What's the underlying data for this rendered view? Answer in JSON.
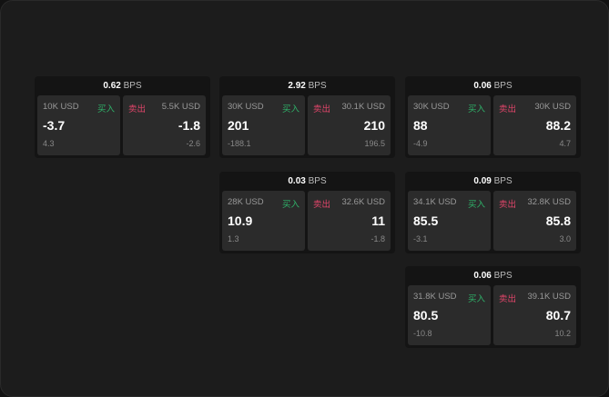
{
  "labels": {
    "buy": "买入",
    "sell": "卖出",
    "unit": "BPS"
  },
  "colors": {
    "buy": "#2fb36a",
    "sell": "#e0456a"
  },
  "panels": [
    {
      "spread": "0.62",
      "bid": {
        "size": "10K USD",
        "price": "-3.7",
        "change": "4.3"
      },
      "ask": {
        "size": "5.5K USD",
        "price": "-1.8",
        "change": "-2.6"
      }
    },
    {
      "spread": "2.92",
      "bid": {
        "size": "30K USD",
        "price": "201",
        "change": "-188.1"
      },
      "ask": {
        "size": "30.1K USD",
        "price": "210",
        "change": "196.5"
      }
    },
    {
      "spread": "0.06",
      "bid": {
        "size": "30K USD",
        "price": "88",
        "change": "-4.9"
      },
      "ask": {
        "size": "30K USD",
        "price": "88.2",
        "change": "4.7"
      }
    },
    {
      "spread": "0.03",
      "bid": {
        "size": "28K USD",
        "price": "10.9",
        "change": "1.3"
      },
      "ask": {
        "size": "32.6K USD",
        "price": "11",
        "change": "-1.8"
      }
    },
    {
      "spread": "0.09",
      "bid": {
        "size": "34.1K USD",
        "price": "85.5",
        "change": "-3.1"
      },
      "ask": {
        "size": "32.8K USD",
        "price": "85.8",
        "change": "3.0"
      }
    },
    {
      "spread": "0.06",
      "bid": {
        "size": "31.8K USD",
        "price": "80.5",
        "change": "-10.8"
      },
      "ask": {
        "size": "39.1K USD",
        "price": "80.7",
        "change": "10.2"
      }
    }
  ]
}
